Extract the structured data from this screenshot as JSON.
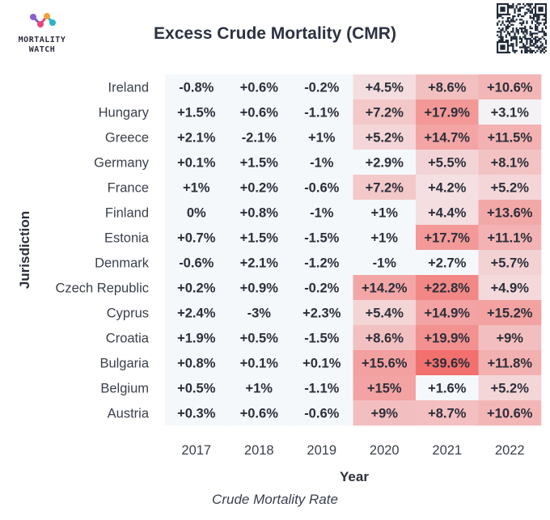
{
  "logo": {
    "line1": "MORTALITY",
    "line2": "WATCH"
  },
  "chart_data": {
    "type": "heatmap",
    "title": "Excess Crude Mortality (CMR)",
    "xlabel": "Year",
    "ylabel": "Jurisdiction",
    "caption": "Crude Mortality Rate",
    "x": [
      "2017",
      "2018",
      "2019",
      "2020",
      "2021",
      "2022"
    ],
    "y": [
      "Ireland",
      "Hungary",
      "Greece",
      "Germany",
      "France",
      "Finland",
      "Estonia",
      "Denmark",
      "Czech Republic",
      "Cyprus",
      "Croatia",
      "Bulgaria",
      "Belgium",
      "Austria"
    ],
    "values": [
      [
        -0.8,
        0.6,
        -0.2,
        4.5,
        8.6,
        10.6
      ],
      [
        1.5,
        0.6,
        -1.1,
        7.2,
        17.9,
        3.1
      ],
      [
        2.1,
        -2.1,
        1,
        5.2,
        14.7,
        11.5
      ],
      [
        0.1,
        1.5,
        -1,
        2.9,
        5.5,
        8.1
      ],
      [
        1,
        0.2,
        -0.6,
        7.2,
        4.2,
        5.2
      ],
      [
        0,
        0.8,
        -1,
        1,
        4.4,
        13.6
      ],
      [
        0.7,
        1.5,
        -1.5,
        1,
        17.7,
        11.1
      ],
      [
        -0.6,
        2.1,
        -1.2,
        -1,
        2.7,
        5.7
      ],
      [
        0.2,
        0.9,
        -0.2,
        14.2,
        22.8,
        4.9
      ],
      [
        2.4,
        -3,
        2.3,
        5.4,
        14.9,
        15.2
      ],
      [
        1.9,
        0.5,
        -1.5,
        8.6,
        19.9,
        9
      ],
      [
        0.8,
        0.1,
        0.1,
        15.6,
        39.6,
        11.8
      ],
      [
        0.5,
        1,
        -1.1,
        15,
        1.6,
        5.2
      ],
      [
        0.3,
        0.6,
        -0.6,
        9,
        8.7,
        10.6
      ]
    ],
    "labels": [
      [
        "-0.8%",
        "+0.6%",
        "-0.2%",
        "+4.5%",
        "+8.6%",
        "+10.6%"
      ],
      [
        "+1.5%",
        "+0.6%",
        "-1.1%",
        "+7.2%",
        "+17.9%",
        "+3.1%"
      ],
      [
        "+2.1%",
        "-2.1%",
        "+1%",
        "+5.2%",
        "+14.7%",
        "+11.5%"
      ],
      [
        "+0.1%",
        "+1.5%",
        "-1%",
        "+2.9%",
        "+5.5%",
        "+8.1%"
      ],
      [
        "+1%",
        "+0.2%",
        "-0.6%",
        "+7.2%",
        "+4.2%",
        "+5.2%"
      ],
      [
        "0%",
        "+0.8%",
        "-1%",
        "+1%",
        "+4.4%",
        "+13.6%"
      ],
      [
        "+0.7%",
        "+1.5%",
        "-1.5%",
        "+1%",
        "+17.7%",
        "+11.1%"
      ],
      [
        "-0.6%",
        "+2.1%",
        "-1.2%",
        "-1%",
        "+2.7%",
        "+5.7%"
      ],
      [
        "+0.2%",
        "+0.9%",
        "-0.2%",
        "+14.2%",
        "+22.8%",
        "+4.9%"
      ],
      [
        "+2.4%",
        "-3%",
        "+2.3%",
        "+5.4%",
        "+14.9%",
        "+15.2%"
      ],
      [
        "+1.9%",
        "+0.5%",
        "-1.5%",
        "+8.6%",
        "+19.9%",
        "+9%"
      ],
      [
        "+0.8%",
        "+0.1%",
        "+0.1%",
        "+15.6%",
        "+39.6%",
        "+11.8%"
      ],
      [
        "+0.5%",
        "+1%",
        "-1.1%",
        "+15%",
        "+1.6%",
        "+5.2%"
      ],
      [
        "+0.3%",
        "+0.6%",
        "-0.6%",
        "+9%",
        "+8.7%",
        "+10.6%"
      ]
    ],
    "colors": {
      "low": "#f4f8fb",
      "high": "#f2706e",
      "text": "#2b2f3a",
      "axis_text": "#3a3f4d"
    }
  }
}
